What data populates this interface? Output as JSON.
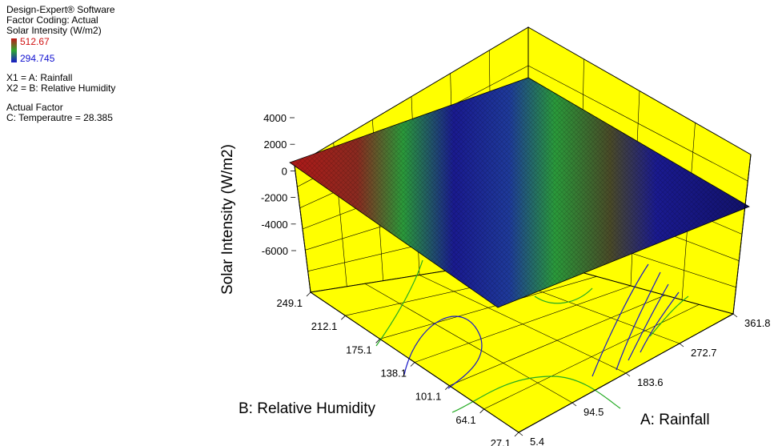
{
  "legend": {
    "software": "Design-Expert® Software",
    "coding": "Factor Coding: Actual",
    "response": "Solar Intensity (W/m2)",
    "max_label": "512.67",
    "min_label": "294.745",
    "x1": "X1 = A: Rainfall",
    "x2": "X2 = B: Relative Humidity",
    "actual_factor_heading": "Actual Factor",
    "actual_factor": "C: Temperautre = 28.385"
  },
  "colors": {
    "panel": "#ffff00",
    "high": "#c01818",
    "mid": "#2ea82e",
    "low": "#1818c8"
  },
  "chart_data": {
    "type": "surface-3d",
    "zlabel": "Solar Intensity (W/m2)",
    "xlabel": "A: Rainfall",
    "ylabel": "B: Relative Humidity",
    "z_ticks": [
      "4000",
      "2000",
      "0",
      "-2000",
      "-4000",
      "-6000"
    ],
    "x_ticks": [
      "5.4",
      "94.5",
      "183.6",
      "272.7",
      "361.8"
    ],
    "y_ticks": [
      "27.1",
      "64.1",
      "101.1",
      "138.1",
      "175.1",
      "212.1",
      "249.1"
    ],
    "x_range": [
      5.4,
      361.8
    ],
    "y_range": [
      27.1,
      249.1
    ],
    "z_range": [
      -6000,
      4000
    ],
    "color_range": [
      294.745,
      512.67
    ]
  }
}
